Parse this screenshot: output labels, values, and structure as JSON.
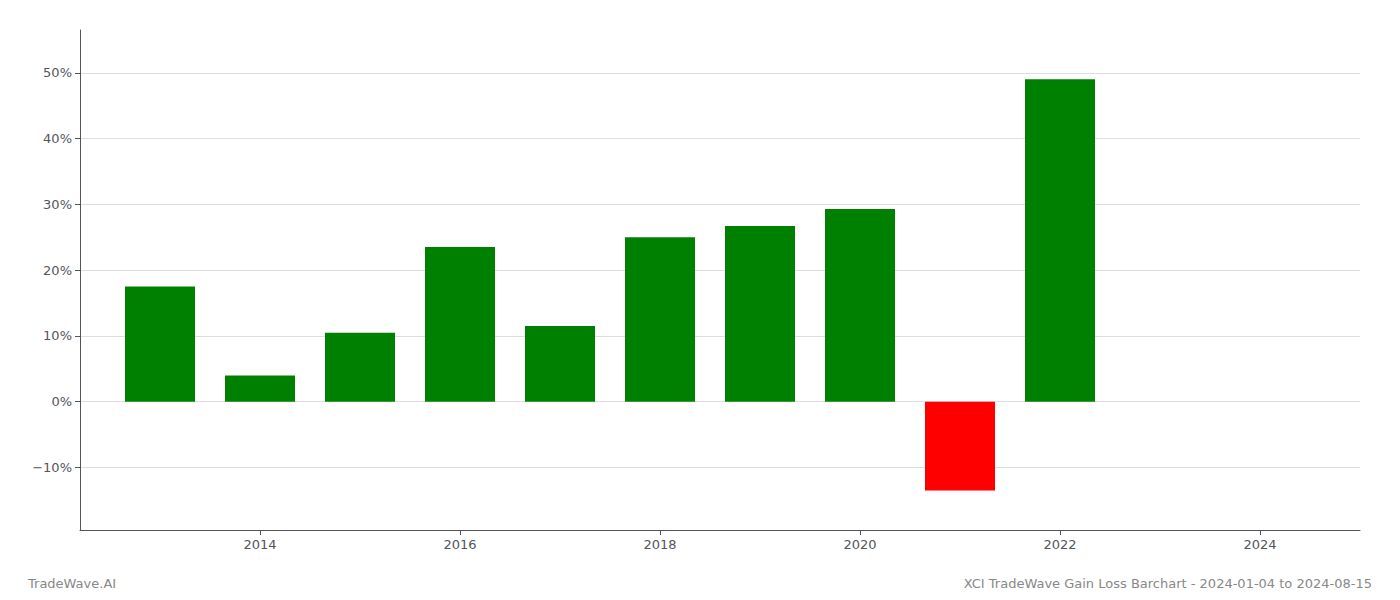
{
  "chart_data": {
    "type": "bar",
    "x": [
      2013,
      2014,
      2015,
      2016,
      2017,
      2018,
      2019,
      2020,
      2021,
      2022
    ],
    "values": [
      0.175,
      0.04,
      0.105,
      0.235,
      0.115,
      0.25,
      0.267,
      0.293,
      -0.135,
      0.49
    ],
    "colors": [
      "#008000",
      "#008000",
      "#008000",
      "#008000",
      "#008000",
      "#008000",
      "#008000",
      "#008000",
      "#ff0000",
      "#008000"
    ],
    "xlim": [
      2012.2,
      2025.0
    ],
    "xticks": [
      2014,
      2016,
      2018,
      2020,
      2022,
      2024
    ],
    "ylim": [
      -0.195,
      0.565
    ],
    "yticks": [
      {
        "value": -0.1,
        "label": "−10%"
      },
      {
        "value": 0.0,
        "label": "0%"
      },
      {
        "value": 0.1,
        "label": "10%"
      },
      {
        "value": 0.2,
        "label": "20%"
      },
      {
        "value": 0.3,
        "label": "30%"
      },
      {
        "value": 0.4,
        "label": "40%"
      },
      {
        "value": 0.5,
        "label": "50%"
      }
    ],
    "grid": true,
    "annotations": [
      "TradeWave.AI",
      "XCI TradeWave Gain Loss Barchart - 2024-01-04 to 2024-08-15"
    ]
  }
}
